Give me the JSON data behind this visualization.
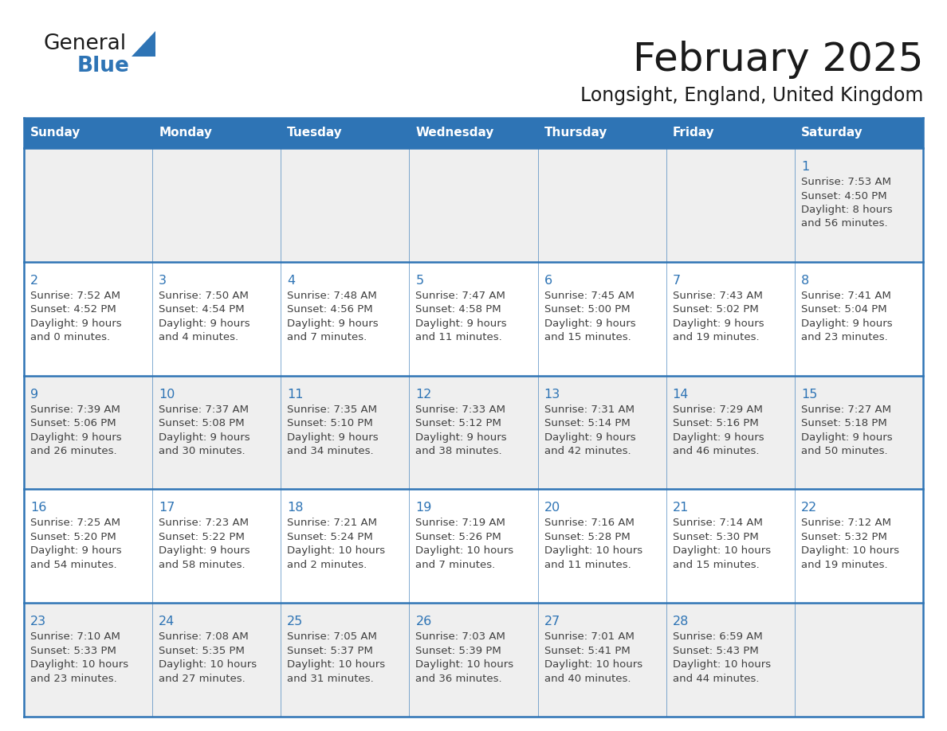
{
  "title": "February 2025",
  "subtitle": "Longsight, England, United Kingdom",
  "header_bg": "#2E74B5",
  "header_text_color": "#FFFFFF",
  "day_names": [
    "Sunday",
    "Monday",
    "Tuesday",
    "Wednesday",
    "Thursday",
    "Friday",
    "Saturday"
  ],
  "bg_color": "#FFFFFF",
  "cell_bg_odd": "#EFEFEF",
  "cell_bg_even": "#FFFFFF",
  "cell_border_color": "#2E74B5",
  "day_number_color": "#2E74B5",
  "text_color": "#404040",
  "logo_color_general": "#1A1A1A",
  "logo_color_blue": "#2E74B5",
  "calendar_data": [
    [
      null,
      null,
      null,
      null,
      null,
      null,
      {
        "day": "1",
        "sunrise": "7:53 AM",
        "sunset": "4:50 PM",
        "daylight": "8 hours",
        "daylight2": "and 56 minutes."
      }
    ],
    [
      {
        "day": "2",
        "sunrise": "7:52 AM",
        "sunset": "4:52 PM",
        "daylight": "9 hours",
        "daylight2": "and 0 minutes."
      },
      {
        "day": "3",
        "sunrise": "7:50 AM",
        "sunset": "4:54 PM",
        "daylight": "9 hours",
        "daylight2": "and 4 minutes."
      },
      {
        "day": "4",
        "sunrise": "7:48 AM",
        "sunset": "4:56 PM",
        "daylight": "9 hours",
        "daylight2": "and 7 minutes."
      },
      {
        "day": "5",
        "sunrise": "7:47 AM",
        "sunset": "4:58 PM",
        "daylight": "9 hours",
        "daylight2": "and 11 minutes."
      },
      {
        "day": "6",
        "sunrise": "7:45 AM",
        "sunset": "5:00 PM",
        "daylight": "9 hours",
        "daylight2": "and 15 minutes."
      },
      {
        "day": "7",
        "sunrise": "7:43 AM",
        "sunset": "5:02 PM",
        "daylight": "9 hours",
        "daylight2": "and 19 minutes."
      },
      {
        "day": "8",
        "sunrise": "7:41 AM",
        "sunset": "5:04 PM",
        "daylight": "9 hours",
        "daylight2": "and 23 minutes."
      }
    ],
    [
      {
        "day": "9",
        "sunrise": "7:39 AM",
        "sunset": "5:06 PM",
        "daylight": "9 hours",
        "daylight2": "and 26 minutes."
      },
      {
        "day": "10",
        "sunrise": "7:37 AM",
        "sunset": "5:08 PM",
        "daylight": "9 hours",
        "daylight2": "and 30 minutes."
      },
      {
        "day": "11",
        "sunrise": "7:35 AM",
        "sunset": "5:10 PM",
        "daylight": "9 hours",
        "daylight2": "and 34 minutes."
      },
      {
        "day": "12",
        "sunrise": "7:33 AM",
        "sunset": "5:12 PM",
        "daylight": "9 hours",
        "daylight2": "and 38 minutes."
      },
      {
        "day": "13",
        "sunrise": "7:31 AM",
        "sunset": "5:14 PM",
        "daylight": "9 hours",
        "daylight2": "and 42 minutes."
      },
      {
        "day": "14",
        "sunrise": "7:29 AM",
        "sunset": "5:16 PM",
        "daylight": "9 hours",
        "daylight2": "and 46 minutes."
      },
      {
        "day": "15",
        "sunrise": "7:27 AM",
        "sunset": "5:18 PM",
        "daylight": "9 hours",
        "daylight2": "and 50 minutes."
      }
    ],
    [
      {
        "day": "16",
        "sunrise": "7:25 AM",
        "sunset": "5:20 PM",
        "daylight": "9 hours",
        "daylight2": "and 54 minutes."
      },
      {
        "day": "17",
        "sunrise": "7:23 AM",
        "sunset": "5:22 PM",
        "daylight": "9 hours",
        "daylight2": "and 58 minutes."
      },
      {
        "day": "18",
        "sunrise": "7:21 AM",
        "sunset": "5:24 PM",
        "daylight": "10 hours",
        "daylight2": "and 2 minutes."
      },
      {
        "day": "19",
        "sunrise": "7:19 AM",
        "sunset": "5:26 PM",
        "daylight": "10 hours",
        "daylight2": "and 7 minutes."
      },
      {
        "day": "20",
        "sunrise": "7:16 AM",
        "sunset": "5:28 PM",
        "daylight": "10 hours",
        "daylight2": "and 11 minutes."
      },
      {
        "day": "21",
        "sunrise": "7:14 AM",
        "sunset": "5:30 PM",
        "daylight": "10 hours",
        "daylight2": "and 15 minutes."
      },
      {
        "day": "22",
        "sunrise": "7:12 AM",
        "sunset": "5:32 PM",
        "daylight": "10 hours",
        "daylight2": "and 19 minutes."
      }
    ],
    [
      {
        "day": "23",
        "sunrise": "7:10 AM",
        "sunset": "5:33 PM",
        "daylight": "10 hours",
        "daylight2": "and 23 minutes."
      },
      {
        "day": "24",
        "sunrise": "7:08 AM",
        "sunset": "5:35 PM",
        "daylight": "10 hours",
        "daylight2": "and 27 minutes."
      },
      {
        "day": "25",
        "sunrise": "7:05 AM",
        "sunset": "5:37 PM",
        "daylight": "10 hours",
        "daylight2": "and 31 minutes."
      },
      {
        "day": "26",
        "sunrise": "7:03 AM",
        "sunset": "5:39 PM",
        "daylight": "10 hours",
        "daylight2": "and 36 minutes."
      },
      {
        "day": "27",
        "sunrise": "7:01 AM",
        "sunset": "5:41 PM",
        "daylight": "10 hours",
        "daylight2": "and 40 minutes."
      },
      {
        "day": "28",
        "sunrise": "6:59 AM",
        "sunset": "5:43 PM",
        "daylight": "10 hours",
        "daylight2": "and 44 minutes."
      },
      null
    ]
  ]
}
